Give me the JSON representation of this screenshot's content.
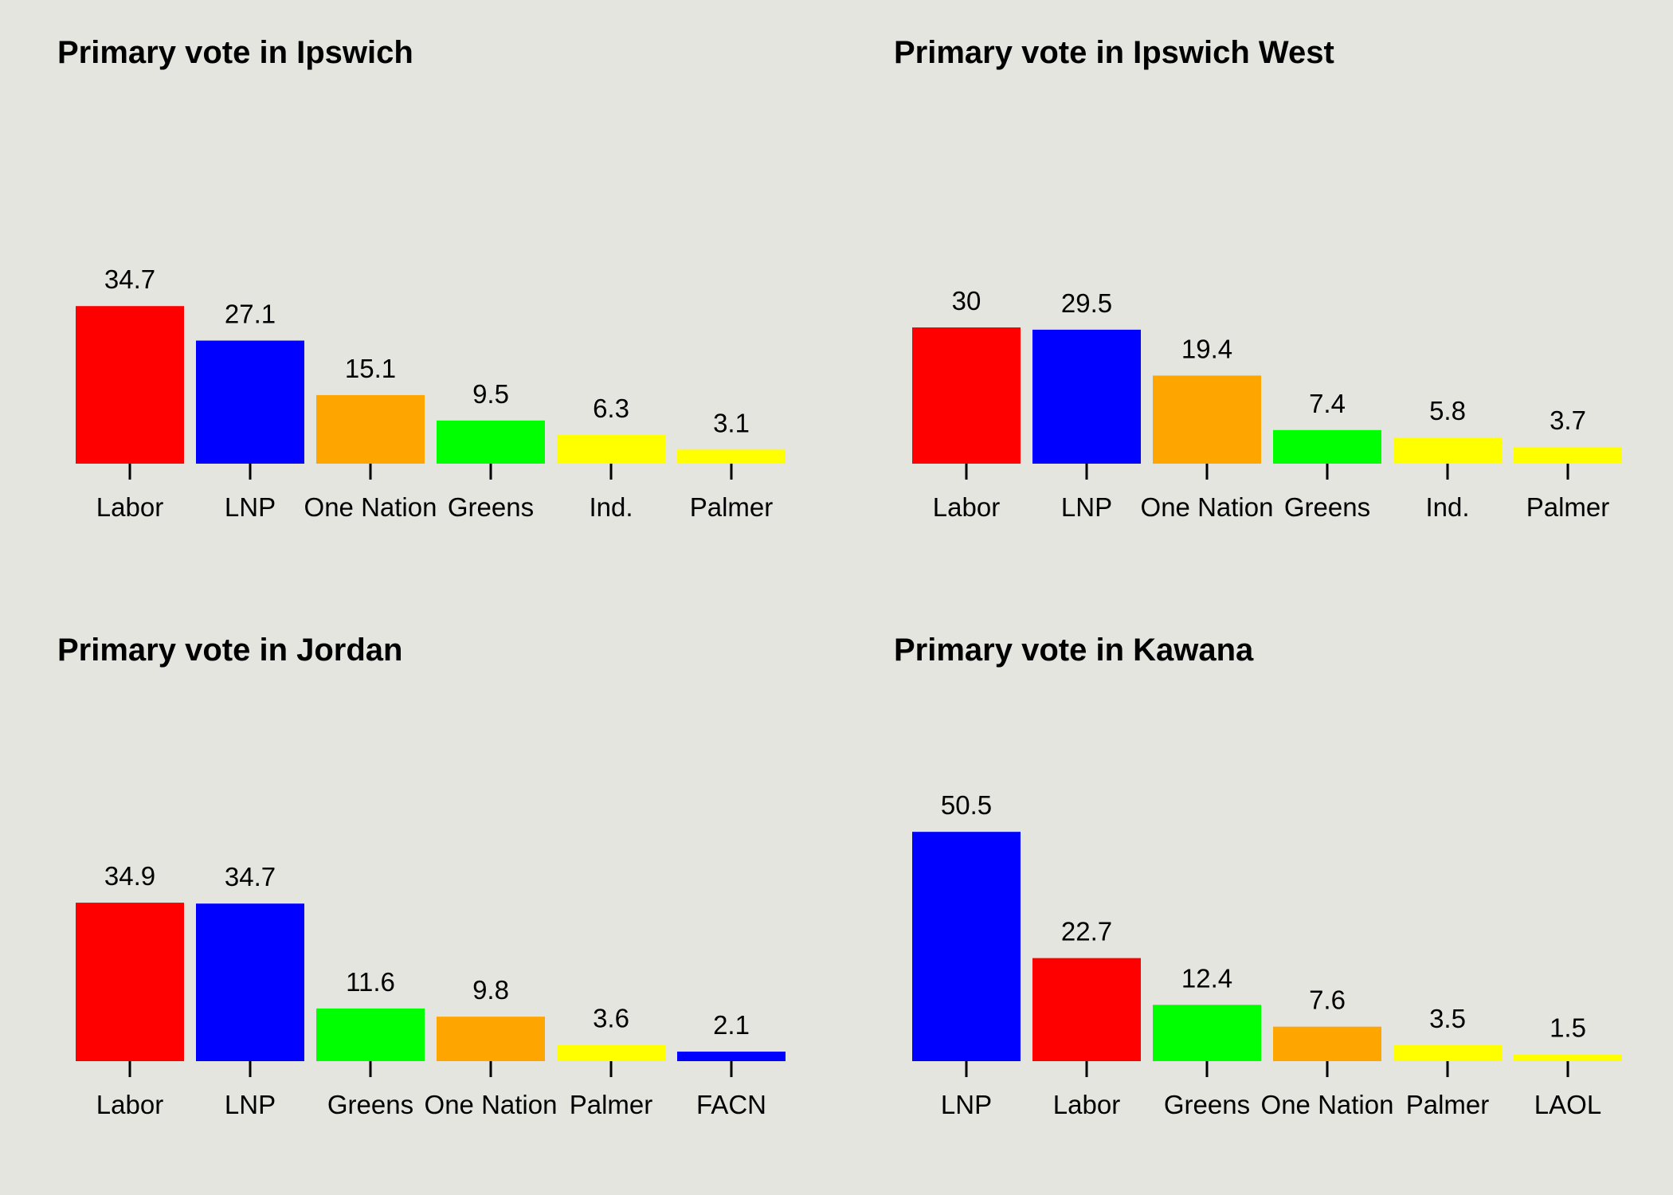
{
  "chart_data": [
    {
      "type": "bar",
      "title": "Primary vote in Ipswich",
      "categories": [
        "Labor",
        "LNP",
        "One Nation",
        "Greens",
        "Ind.",
        "Palmer"
      ],
      "values": [
        34.7,
        27.1,
        15.1,
        9.5,
        6.3,
        3.1
      ],
      "value_labels": [
        "34.7",
        "27.1",
        "15.1",
        "9.5",
        "6.3",
        "3.1"
      ],
      "colors": [
        "#ff0000",
        "#0000ff",
        "#ffa500",
        "#00ff00",
        "#ffff00",
        "#ffff00"
      ],
      "ylim": [
        0,
        100
      ],
      "grid": false,
      "xlabel": "",
      "ylabel": ""
    },
    {
      "type": "bar",
      "title": "Primary vote in Ipswich West",
      "categories": [
        "Labor",
        "LNP",
        "One Nation",
        "Greens",
        "Ind.",
        "Palmer"
      ],
      "values": [
        30,
        29.5,
        19.4,
        7.4,
        5.8,
        3.7
      ],
      "value_labels": [
        "30",
        "29.5",
        "19.4",
        "7.4",
        "5.8",
        "3.7"
      ],
      "colors": [
        "#ff0000",
        "#0000ff",
        "#ffa500",
        "#00ff00",
        "#ffff00",
        "#ffff00"
      ],
      "ylim": [
        0,
        100
      ],
      "grid": false,
      "xlabel": "",
      "ylabel": ""
    },
    {
      "type": "bar",
      "title": "Primary vote in Jordan",
      "categories": [
        "Labor",
        "LNP",
        "Greens",
        "One Nation",
        "Palmer",
        "FACN"
      ],
      "values": [
        34.9,
        34.7,
        11.6,
        9.8,
        3.6,
        2.1
      ],
      "value_labels": [
        "34.9",
        "34.7",
        "11.6",
        "9.8",
        "3.6",
        "2.1"
      ],
      "colors": [
        "#ff0000",
        "#0000ff",
        "#00ff00",
        "#ffa500",
        "#ffff00",
        "#0000ff"
      ],
      "ylim": [
        0,
        100
      ],
      "grid": false,
      "xlabel": "",
      "ylabel": ""
    },
    {
      "type": "bar",
      "title": "Primary vote in Kawana",
      "categories": [
        "LNP",
        "Labor",
        "Greens",
        "One Nation",
        "Palmer",
        "LAOL"
      ],
      "values": [
        50.5,
        22.7,
        12.4,
        7.6,
        3.5,
        1.5
      ],
      "value_labels": [
        "50.5",
        "22.7",
        "12.4",
        "7.6",
        "3.5",
        "1.5"
      ],
      "colors": [
        "#0000ff",
        "#ff0000",
        "#00ff00",
        "#ffa500",
        "#ffff00",
        "#ffff00"
      ],
      "ylim": [
        0,
        100
      ],
      "grid": false,
      "xlabel": "",
      "ylabel": ""
    }
  ]
}
